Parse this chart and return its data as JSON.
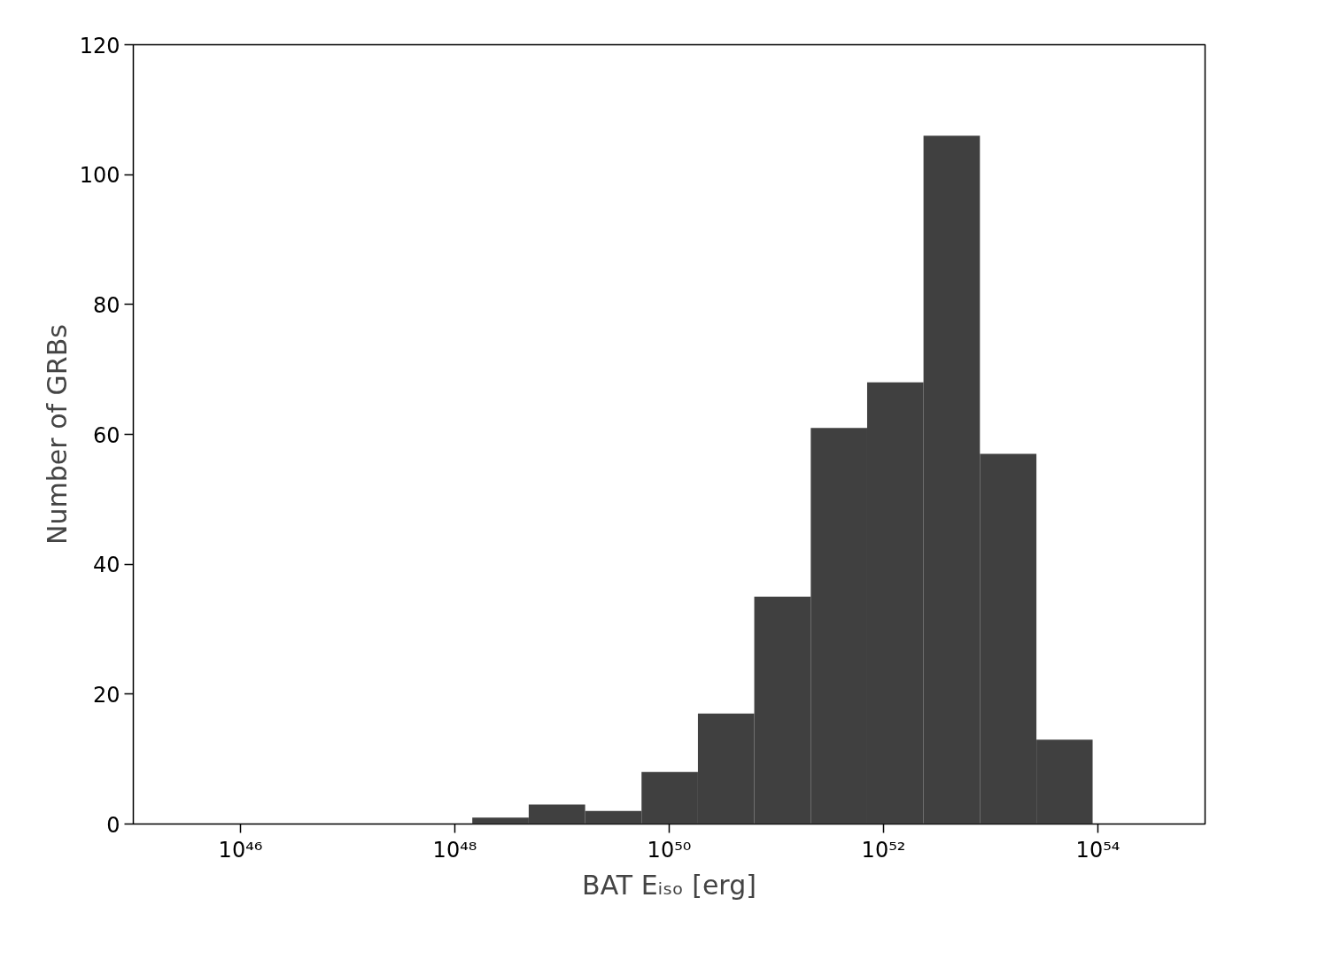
{
  "chart_data": {
    "type": "histogram",
    "xlabel": "BAT Eᵢₛₒ [erg]",
    "ylabel": "Number of GRBs",
    "bins": [
      1.455e+48,
      4.89e+48,
      1.644e+49,
      5.52e+49,
      1.854e+50,
      6.22e+50,
      2.094e+51,
      7.03e+51,
      2.36e+52,
      7.93e+52,
      2.67e+53,
      8.93e+53
    ],
    "values": [
      1,
      3,
      2,
      8,
      17,
      35,
      61,
      68,
      106,
      57,
      13
    ],
    "color": "#404040",
    "log": "x",
    "grid": false,
    "xlim": [
      1e+45,
      1e+55
    ],
    "xticks": [
      {
        "value": 1e+46,
        "label": "10⁴⁶"
      },
      {
        "value": 1e+48,
        "label": "10⁴⁸"
      },
      {
        "value": 1e+50,
        "label": "10⁵⁰"
      },
      {
        "value": 1e+52,
        "label": "10⁵²"
      },
      {
        "value": 1e+54,
        "label": "10⁵⁴"
      }
    ],
    "ylim": [
      0,
      120
    ],
    "yticks": [
      0,
      20,
      40,
      60,
      80,
      100,
      120
    ]
  }
}
